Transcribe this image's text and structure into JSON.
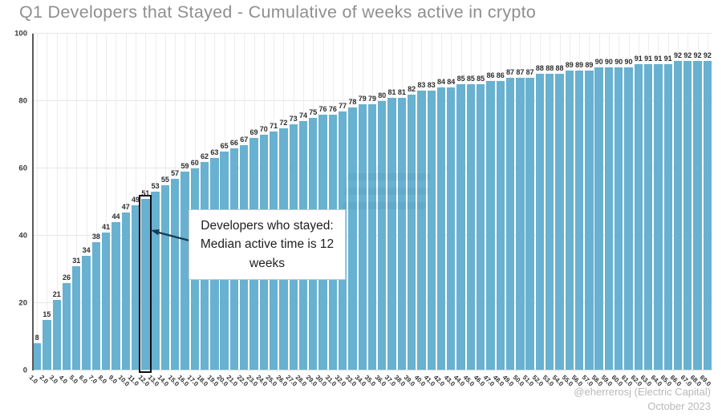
{
  "title": "Q1 Developers that Stayed - Cumulative of weeks active in crypto",
  "chart_data": {
    "type": "bar",
    "title": "Q1 Developers that Stayed - Cumulative of weeks active in crypto",
    "xlabel": "",
    "ylabel": "",
    "ylim": [
      0,
      100
    ],
    "yticks": [
      0,
      20,
      40,
      60,
      80,
      100
    ],
    "grid": true,
    "legend_position": "none",
    "bar_color": "#68b1d0",
    "categories": [
      "1.0",
      "2.0",
      "3.0",
      "4.0",
      "5.0",
      "6.0",
      "7.0",
      "8.0",
      "9.0",
      "10.0",
      "11.0",
      "12.0",
      "13.0",
      "14.0",
      "15.0",
      "16.0",
      "17.0",
      "18.0",
      "19.0",
      "20.0",
      "21.0",
      "22.0",
      "23.0",
      "24.0",
      "25.0",
      "26.0",
      "27.0",
      "28.0",
      "29.0",
      "30.0",
      "31.0",
      "32.0",
      "33.0",
      "34.0",
      "35.0",
      "36.0",
      "37.0",
      "38.0",
      "39.0",
      "40.0",
      "41.0",
      "42.0",
      "43.0",
      "44.0",
      "45.0",
      "46.0",
      "47.0",
      "48.0",
      "49.0",
      "50.0",
      "51.0",
      "52.0",
      "53.0",
      "54.0",
      "55.0",
      "56.0",
      "57.0",
      "58.0",
      "59.0",
      "60.0",
      "61.0",
      "62.0",
      "63.0",
      "64.0",
      "65.0",
      "66.0",
      "67.0",
      "68.0",
      "69.0"
    ],
    "values": [
      8,
      15,
      21,
      26,
      31,
      34,
      38,
      41,
      44,
      47,
      49,
      51,
      53,
      55,
      57,
      59,
      60,
      62,
      63,
      65,
      66,
      67,
      69,
      70,
      71,
      72,
      73,
      74,
      75,
      76,
      76,
      77,
      78,
      79,
      79,
      80,
      81,
      81,
      82,
      83,
      83,
      84,
      84,
      85,
      85,
      85,
      86,
      86,
      87,
      87,
      87,
      88,
      88,
      88,
      89,
      89,
      89,
      90,
      90,
      90,
      90,
      91,
      91,
      91,
      91,
      92,
      92,
      92,
      92
    ],
    "highlight": {
      "index": 12,
      "outline_color": "#0c0c15"
    }
  },
  "annotation": {
    "text": "Developers who stayed: Median active time is 12 weeks",
    "arrow_color": "#1b3a53"
  },
  "footer": {
    "credit": "@eherrerosj (Electric Capital)",
    "date": "October 2023"
  }
}
